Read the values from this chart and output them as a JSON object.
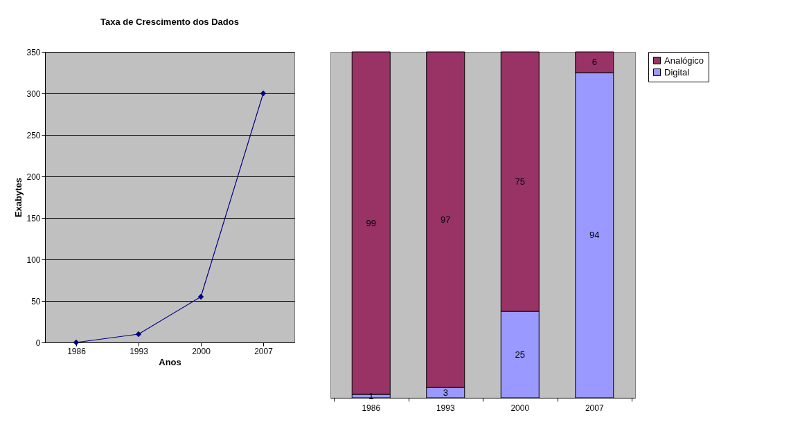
{
  "chart_data": [
    {
      "type": "line",
      "title": "Taxa de Crescimento dos Dados",
      "xlabel": "Anos",
      "ylabel": "Exabytes",
      "categories": [
        "1986",
        "1993",
        "2000",
        "2007"
      ],
      "series": [
        {
          "color": "#000080",
          "values": [
            0,
            10,
            55,
            300
          ]
        }
      ],
      "ylim": [
        0,
        350
      ],
      "yticks": [
        0,
        50,
        100,
        150,
        200,
        250,
        300,
        350
      ],
      "grid": "y",
      "marker": "diamond",
      "line_style": "solid"
    },
    {
      "type": "bar",
      "stacked": true,
      "categories": [
        "1986",
        "1993",
        "2000",
        "2007"
      ],
      "series": [
        {
          "name": "Digital",
          "color": "#9999ff",
          "values": [
            1,
            3,
            25,
            94
          ]
        },
        {
          "name": "Analógico",
          "color": "#993366",
          "values": [
            99,
            97,
            75,
            6
          ]
        }
      ],
      "data_labels": true,
      "legend": "right",
      "tick_labels": "x"
    }
  ]
}
